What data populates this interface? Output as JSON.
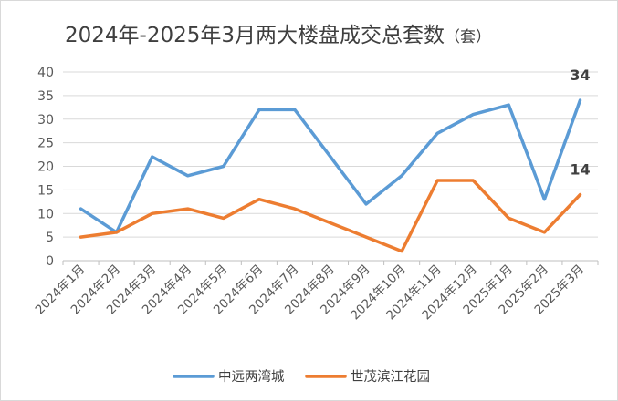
{
  "chart_data": {
    "type": "line",
    "title": "2024年-2025年3月两大楼盘成交总套数",
    "title_unit": "（套）",
    "xlabel": "",
    "ylabel": "",
    "ylim": [
      0,
      40
    ],
    "yticks": [
      0,
      5,
      10,
      15,
      20,
      25,
      30,
      35,
      40
    ],
    "grid": true,
    "legend_position": "bottom",
    "categories": [
      "2024年1月",
      "2024年2月",
      "2024年3月",
      "2024年4月",
      "2024年5月",
      "2024年6月",
      "2024年7月",
      "2024年8月",
      "2024年9月",
      "2024年10月",
      "2024年11月",
      "2024年12月",
      "2025年1月",
      "2025年2月",
      "2025年3月"
    ],
    "series": [
      {
        "name": "中远两湾城",
        "color": "#5b9bd5",
        "values": [
          11,
          6,
          22,
          18,
          20,
          32,
          32,
          22,
          12,
          18,
          27,
          31,
          33,
          13,
          34
        ]
      },
      {
        "name": "世茂滨江花园",
        "color": "#ed7d31",
        "values": [
          5,
          6,
          10,
          11,
          9,
          13,
          11,
          8,
          5,
          2,
          17,
          17,
          9,
          6,
          14
        ]
      }
    ],
    "data_labels": [
      {
        "series": 0,
        "index": 14,
        "text": "34"
      },
      {
        "series": 1,
        "index": 14,
        "text": "14"
      }
    ]
  }
}
